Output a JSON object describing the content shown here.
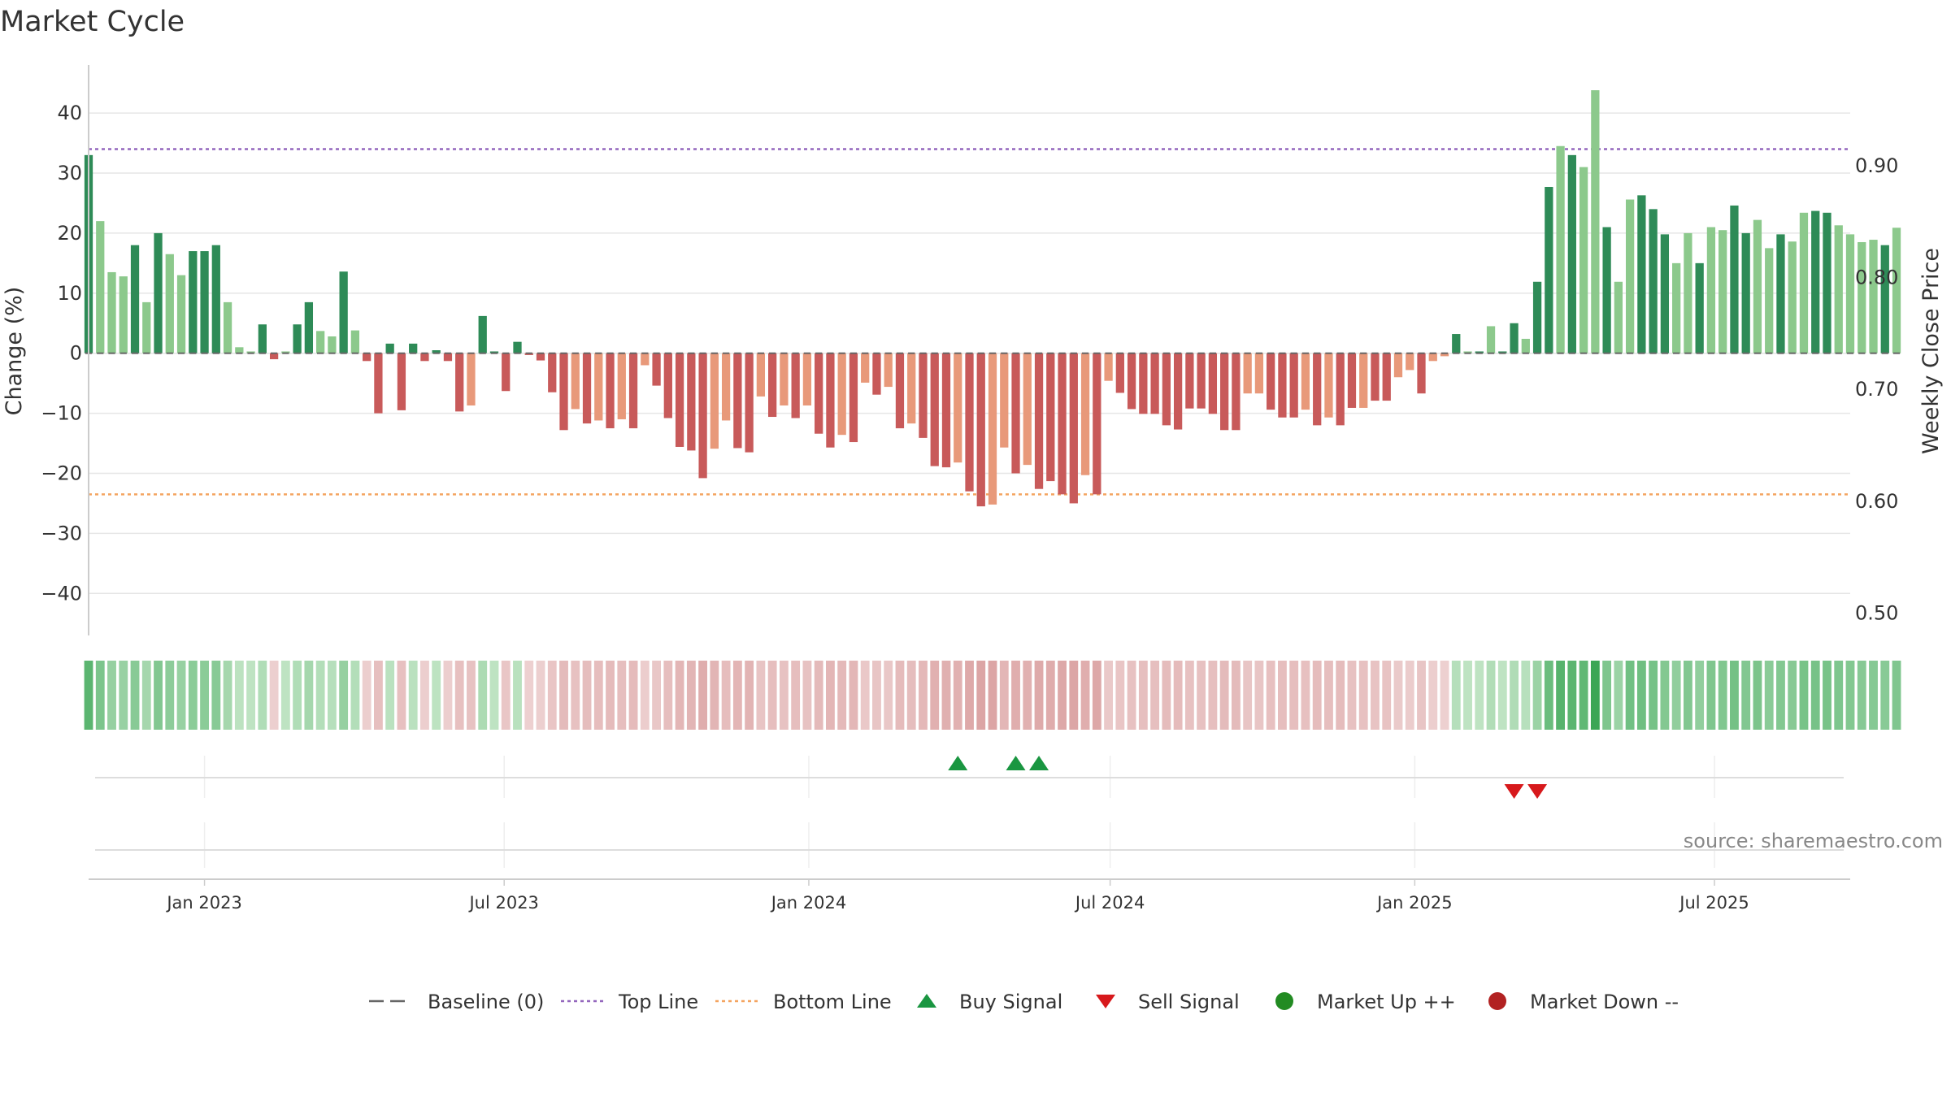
{
  "title": "Market Cycle",
  "source": "source: sharemaestro.com",
  "colors": {
    "pos_dark": "#2e8b57",
    "pos_light": "#8cc98c",
    "neg_dark": "#c85a5a",
    "neg_light": "#e8997a",
    "top_line": "#9467bd",
    "bottom_line": "#f4a460",
    "buy": "#1a9641",
    "sell": "#d7191c",
    "market_up": "#228b22",
    "market_down": "#b22222",
    "baseline": "#666666"
  },
  "chart_data": {
    "type": "bar",
    "title": "Market Cycle",
    "ylabel": "Change (%)",
    "y2label": "Weekly Close Price",
    "ylim": [
      -47,
      48
    ],
    "yticks": [
      40,
      30,
      20,
      10,
      0,
      -10,
      -20,
      -30,
      -40
    ],
    "ytick_labels": [
      "40",
      "30",
      "20",
      "10",
      "0",
      "−10",
      "−20",
      "−30",
      "−40"
    ],
    "y2lim": [
      0.48,
      0.99
    ],
    "y2ticks": [
      0.9,
      0.8,
      0.7,
      0.6,
      0.5
    ],
    "y2tick_labels": [
      "0.90",
      "0.80",
      "0.70",
      "0.60",
      "0.50"
    ],
    "top_line": 34,
    "bottom_line": -23.5,
    "x_start": "2022-10-23",
    "x_end": "2025-09-21",
    "xticks": [
      {
        "date": "2023-01-01",
        "label": "Jan 2023"
      },
      {
        "date": "2023-07-01",
        "label": "Jul 2023"
      },
      {
        "date": "2024-01-01",
        "label": "Jan 2024"
      },
      {
        "date": "2024-07-01",
        "label": "Jul 2024"
      },
      {
        "date": "2025-01-01",
        "label": "Jan 2025"
      },
      {
        "date": "2025-07-01",
        "label": "Jul 2025"
      }
    ],
    "x_first_week": "2022-10-23",
    "week_step_days": 7,
    "values": [
      33,
      22,
      13.5,
      12.8,
      18,
      8.5,
      20,
      16.5,
      13,
      17,
      17,
      18,
      8.5,
      1,
      0.3,
      4.8,
      -1,
      0.3,
      4.8,
      8.5,
      3.7,
      2.8,
      13.6,
      3.8,
      -1.3,
      -10,
      1.6,
      -9.5,
      1.6,
      -1.3,
      0.5,
      -1.3,
      -9.7,
      -8.7,
      6.2,
      0.3,
      -6.3,
      1.9,
      -0.3,
      -1.2,
      -6.5,
      -12.8,
      -9.3,
      -11.7,
      -11.2,
      -12.5,
      -11,
      -12.5,
      -2,
      -5.4,
      -10.8,
      -15.6,
      -16.2,
      -20.8,
      -15.9,
      -11.2,
      -15.8,
      -16.5,
      -7.2,
      -10.6,
      -8.7,
      -10.8,
      -8.7,
      -13.4,
      -15.7,
      -13.6,
      -14.8,
      -4.9,
      -6.9,
      -5.6,
      -12.5,
      -11.7,
      -14.1,
      -18.8,
      -19,
      -18.2,
      -23,
      -25.5,
      -25.2,
      -15.7,
      -20,
      -18.6,
      -22.6,
      -21.3,
      -23.5,
      -25,
      -20.3,
      -23.5,
      -4.6,
      -6.6,
      -9.3,
      -10.1,
      -10.1,
      -12,
      -12.7,
      -9.2,
      -9.2,
      -10.1,
      -12.8,
      -12.8,
      -6.7,
      -6.7,
      -9.4,
      -10.7,
      -10.7,
      -9.4,
      -12,
      -10.7,
      -12,
      -9.1,
      -9.1,
      -7.9,
      -7.9,
      -4,
      -2.8,
      -6.7,
      -1.3,
      -0.5,
      3.2,
      0.3,
      0.3,
      4.5,
      0.3,
      5,
      2.4,
      11.9,
      27.7,
      34.5,
      33,
      31,
      43.8,
      21,
      11.9,
      25.6,
      26.3,
      24,
      19.8,
      15,
      20,
      15,
      21,
      20.5,
      24.6,
      20,
      22.2,
      17.5,
      19.8,
      18.6,
      23.4,
      23.7,
      23.4,
      21.3,
      19.8,
      18.5,
      18.9,
      18,
      20.9
    ],
    "shade_pattern": [
      1,
      0,
      0,
      0,
      1,
      0,
      1,
      0,
      0,
      1,
      1,
      1,
      0,
      0,
      0,
      1,
      1,
      0,
      1,
      1,
      0,
      0,
      1,
      0,
      1,
      1,
      1,
      1,
      1,
      1,
      1,
      1,
      1,
      0,
      1,
      1,
      1,
      1,
      1,
      1,
      1,
      1,
      0,
      1,
      0,
      1,
      0,
      1,
      0,
      1,
      1,
      1,
      1,
      1,
      0,
      0,
      1,
      1,
      0,
      1,
      0,
      1,
      0,
      1,
      1,
      0,
      1,
      0,
      1,
      0,
      1,
      0,
      1,
      1,
      1,
      0,
      1,
      1,
      0,
      0,
      1,
      0,
      1,
      1,
      1,
      1,
      0,
      1,
      0,
      1,
      1,
      1,
      1,
      1,
      1,
      1,
      1,
      1,
      1,
      1,
      0,
      0,
      1,
      1,
      1,
      0,
      1,
      0,
      1,
      1,
      0,
      1,
      1,
      0,
      0,
      1,
      0,
      0,
      1,
      0,
      1,
      0,
      1,
      1,
      0,
      1,
      1,
      0,
      1,
      0,
      0,
      1,
      0,
      0,
      1,
      1,
      1,
      0,
      0,
      1,
      0,
      0,
      1,
      1,
      0,
      0,
      1,
      0,
      0,
      1,
      1,
      0,
      0,
      0,
      0,
      1
    ],
    "buy_signals": [
      "2024-03-31",
      "2024-05-05",
      "2024-05-19"
    ],
    "sell_signals": [
      "2025-03-02",
      "2025-03-16"
    ],
    "legend_position": "bottom-center"
  },
  "legend": [
    {
      "key": "baseline",
      "label": "Baseline (0)",
      "marker": "dash-gray"
    },
    {
      "key": "top",
      "label": "Top Line",
      "marker": "dotted-purple"
    },
    {
      "key": "bottom",
      "label": "Bottom Line",
      "marker": "dotted-orange"
    },
    {
      "key": "buy",
      "label": "Buy Signal",
      "marker": "triangle-up-green"
    },
    {
      "key": "sell",
      "label": "Sell Signal",
      "marker": "triangle-down-red"
    },
    {
      "key": "up",
      "label": "Market Up ++",
      "marker": "circle-green"
    },
    {
      "key": "down",
      "label": "Market Down --",
      "marker": "circle-red"
    }
  ]
}
